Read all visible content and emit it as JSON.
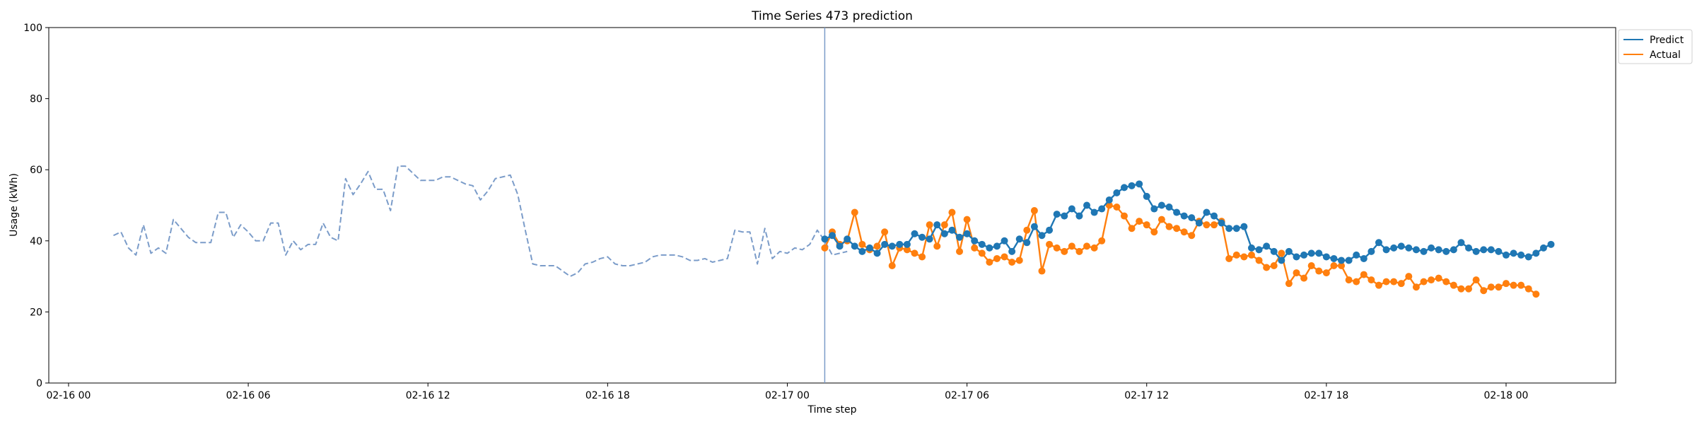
{
  "chart_data": {
    "type": "line",
    "title": "Time Series 473 prediction",
    "xlabel": "Time step",
    "ylabel": "Usage (kWh)",
    "ylim": [
      0,
      100
    ],
    "yticks": [
      0,
      20,
      40,
      60,
      80,
      100
    ],
    "x_start": "02-16 01:30",
    "x_step_minutes": 15,
    "xticks": [
      "02-16 00",
      "02-16 06",
      "02-16 12",
      "02-16 18",
      "02-17 00",
      "02-17 06",
      "02-17 12",
      "02-17 18",
      "02-18 00"
    ],
    "forecast_start": "02-17 01:15",
    "legend_position": "upper-right-outside",
    "colors": {
      "history": "#7b9cc9",
      "predict": "#1f77b4",
      "actual": "#ff7f0e",
      "divider": "#7b9cc9"
    },
    "series": [
      {
        "key": "history",
        "style": "dashed",
        "start": "02-16 01:30",
        "values": [
          41.5,
          42.5,
          38,
          36,
          44.5,
          36.5,
          38,
          36.5,
          46,
          43.5,
          41,
          39.5,
          39.5,
          39.5,
          48,
          48,
          41,
          44.5,
          42.5,
          40,
          40,
          45,
          45,
          36,
          40,
          37.5,
          39,
          39,
          45,
          41,
          40,
          57.5,
          53,
          56,
          59.5,
          54.5,
          54.5,
          48.5,
          61,
          61,
          59,
          57,
          57,
          57,
          58,
          58,
          57,
          56,
          55.5,
          51.5,
          54,
          57.5,
          58,
          58.5,
          53,
          43,
          33.5,
          33,
          33,
          33,
          31.5,
          30,
          31,
          33.5,
          34,
          35,
          35.5,
          33.5,
          33,
          33,
          33.5,
          34,
          35.5,
          36,
          36,
          36,
          35.5,
          34.5,
          34.5,
          35,
          34,
          34.5,
          35,
          43,
          42.5,
          42.5,
          33.5,
          43.5,
          35,
          37,
          36.5,
          38,
          37.5,
          39,
          43,
          40,
          36,
          36.5,
          37
        ]
      },
      {
        "name": "Predict",
        "key": "predict",
        "style": "solid-markers",
        "start": "02-17 01:15",
        "values": [
          40.5,
          41.5,
          38.5,
          40.5,
          38.5,
          37,
          38,
          36.5,
          39,
          38.5,
          39,
          39,
          42,
          41,
          40.5,
          44.5,
          42,
          43,
          41,
          42,
          40,
          39,
          38,
          38.5,
          40,
          37,
          40.5,
          39.5,
          44,
          41.5,
          43,
          47.5,
          47,
          49,
          47,
          50,
          48,
          49,
          51.5,
          53.5,
          55,
          55.5,
          56,
          52.5,
          49,
          50,
          49.5,
          48,
          47,
          46.5,
          45,
          48,
          47,
          45,
          43.5,
          43.5,
          44,
          38,
          37.5,
          38.5,
          37,
          34.5,
          37,
          35.5,
          36,
          36.5,
          36.5,
          35.5,
          35,
          34.5,
          34.5,
          36,
          35,
          37,
          39.5,
          37.5,
          38,
          38.5,
          38,
          37.5,
          37,
          38,
          37.5,
          37,
          37.5,
          39.5,
          38,
          37,
          37.5,
          37.5,
          37,
          36,
          36.5,
          36,
          35.5,
          36.5,
          38,
          39
        ]
      },
      {
        "name": "Actual",
        "key": "actual",
        "style": "solid-markers",
        "start": "02-17 01:15",
        "values": [
          38,
          42.5,
          39,
          40,
          48,
          39,
          37.5,
          38.5,
          42.5,
          33,
          38,
          37.5,
          36.5,
          35.5,
          44.5,
          38.5,
          44.5,
          48,
          37,
          46,
          38,
          36.5,
          34,
          35,
          35.5,
          34,
          34.5,
          43,
          48.5,
          31.5,
          39,
          38,
          37,
          38.5,
          37,
          38.5,
          38,
          40,
          50,
          49.5,
          47,
          43.5,
          45.5,
          44.5,
          42.5,
          46,
          44,
          43.5,
          42.5,
          41.5,
          45.5,
          44.5,
          44.5,
          45.5,
          35,
          36,
          35.5,
          36,
          34.5,
          32.5,
          33,
          36.5,
          28,
          31,
          29.5,
          33,
          31.5,
          31,
          33,
          33,
          29,
          28.5,
          30.5,
          29,
          27.5,
          28.5,
          28.5,
          28,
          30,
          27,
          28.5,
          29,
          29.5,
          28.5,
          27.5,
          26.5,
          26.5,
          29,
          26,
          27,
          27,
          28,
          27.5,
          27.5,
          26.5,
          25
        ]
      }
    ]
  }
}
